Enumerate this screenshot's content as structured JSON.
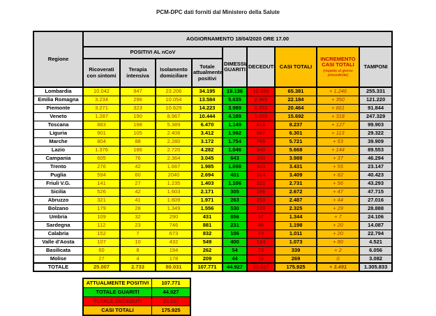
{
  "page_title": "PCM-DPC dati forniti dal Ministero della Salute",
  "colors": {
    "yellow": "#FFFF00",
    "green": "#00DD00",
    "red": "#FF0000",
    "orange": "#FFC000",
    "header_grey": "#D9D9D9",
    "deceduti_text": "#7C1000",
    "positivi_text": "#A33A00",
    "increment_header_text": "#C00000"
  },
  "table": {
    "header": {
      "update": "AGGIORNAMENTO 18/04/2020 ORE 17.00",
      "region": "Regione",
      "positivi_group": "POSITIVI AL nCoV",
      "ricoverati": "Ricoverati con sintomi",
      "terapia": "Terapia intensiva",
      "isolamento": "Isolamento domiciliare",
      "totale_positivi": "Totale attualmente positivi",
      "dimessi": "DIMESSI/ GUARITI",
      "deceduti": "DECEDUTI",
      "casi_totali": "CASI TOTALI",
      "incremento": "INCREMENTO CASI TOTALI",
      "incremento_note": "(rispetto al giorno precedente)",
      "tamponi": "TAMPONI"
    },
    "rows": [
      {
        "region": "Lombardia",
        "values": [
          "10.042",
          "947",
          "23.206",
          "34.195",
          "19.136",
          "12.050",
          "65.381",
          "+ 1.246",
          "255.331"
        ]
      },
      {
        "region": "Emilia Romagna",
        "values": [
          "3.234",
          "296",
          "10.054",
          "13.584",
          "5.635",
          "2.965",
          "22.184",
          "+ 350",
          "121.220"
        ]
      },
      {
        "region": "Piemonte",
        "values": [
          "3.271",
          "323",
          "10.629",
          "14.223",
          "3.989",
          "2.252",
          "20.464",
          "+ 661",
          "91.844"
        ]
      },
      {
        "region": "Veneto",
        "values": [
          "1.287",
          "190",
          "8.967",
          "10.444",
          "4.189",
          "1.059",
          "15.692",
          "+ 318",
          "247.329"
        ]
      },
      {
        "region": "Toscana",
        "values": [
          "883",
          "198",
          "5.389",
          "6.470",
          "1.149",
          "618",
          "8.237",
          "+ 127",
          "99.903"
        ]
      },
      {
        "region": "Liguria",
        "values": [
          "901",
          "105",
          "2.406",
          "3.412",
          "1.992",
          "897",
          "6.301",
          "+ 113",
          "29.322"
        ]
      },
      {
        "region": "Marche",
        "values": [
          "804",
          "88",
          "2.280",
          "3.172",
          "1.754",
          "795",
          "5.721",
          "+ 53",
          "39.909"
        ]
      },
      {
        "region": "Lazio",
        "values": [
          "1.376",
          "186",
          "2.720",
          "4.282",
          "1.046",
          "340",
          "5.668",
          "+ 144",
          "89.553"
        ]
      },
      {
        "region": "Campania",
        "values": [
          "605",
          "76",
          "2.364",
          "3.045",
          "643",
          "300",
          "3.988",
          "+ 37",
          "46.294"
        ]
      },
      {
        "region": "Trento",
        "values": [
          "276",
          "42",
          "1.667",
          "1.985",
          "1.098",
          "348",
          "3.431",
          "+ 55",
          "23.147"
        ]
      },
      {
        "region": "Puglia",
        "values": [
          "594",
          "60",
          "2040",
          "2.694",
          "401",
          "314",
          "3.409",
          "+ 82",
          "40.423"
        ]
      },
      {
        "region": "Friuli V.G.",
        "values": [
          "141",
          "27",
          "1.235",
          "1.403",
          "1.106",
          "222",
          "2.731",
          "+ 56",
          "43.293"
        ]
      },
      {
        "region": "Sicilia",
        "values": [
          "526",
          "42",
          "1.603",
          "2.171",
          "305",
          "196",
          "2.672",
          "+ 47",
          "47.715"
        ]
      },
      {
        "region": "Abruzzo",
        "values": [
          "321",
          "41",
          "1.609",
          "1.971",
          "263",
          "253",
          "2.487",
          "+ 44",
          "27.016"
        ]
      },
      {
        "region": "Bolzano",
        "values": [
          "179",
          "28",
          "1.349",
          "1.556",
          "530",
          "239",
          "2.325",
          "+ 29",
          "28.888"
        ]
      },
      {
        "region": "Umbria",
        "values": [
          "109",
          "32",
          "290",
          "431",
          "856",
          "57",
          "1.344",
          "+ 7",
          "24.106"
        ]
      },
      {
        "region": "Sardegna",
        "values": [
          "112",
          "23",
          "746",
          "881",
          "231",
          "86",
          "1.198",
          "+ 20",
          "14.087"
        ]
      },
      {
        "region": "Calabria",
        "values": [
          "152",
          "7",
          "673",
          "832",
          "106",
          "73",
          "1.011",
          "+ 20",
          "22.794"
        ]
      },
      {
        "region": "Valle d'Aosta",
        "values": [
          "107",
          "10",
          "432",
          "549",
          "400",
          "124",
          "1.073",
          "+ 80",
          "4.521"
        ]
      },
      {
        "region": "Basilicata",
        "values": [
          "60",
          "8",
          "194",
          "262",
          "54",
          "23",
          "339",
          "+ 2",
          "6.056"
        ]
      },
      {
        "region": "Molise",
        "values": [
          "27",
          "4",
          "178",
          "209",
          "44",
          "16",
          "269",
          "0",
          "3.082"
        ]
      },
      {
        "region": "TOTALE",
        "is_total": true,
        "values": [
          "25.007",
          "2.733",
          "80.031",
          "107.771",
          "44.927",
          "23.227",
          "175.925",
          "+ 3.491",
          "1.305.833"
        ]
      }
    ]
  },
  "legend": {
    "rows": [
      {
        "label": "ATTUALMENTE POSITIVI",
        "value": "107.771",
        "color": "yellow"
      },
      {
        "label": "TOTALE GUARITI",
        "value": "44.927",
        "color": "green"
      },
      {
        "label": "TOTALE DECEDUTI",
        "value": "23.227",
        "color": "red"
      },
      {
        "label": "CASI TOTALI",
        "value": "175.925",
        "color": "orange"
      }
    ]
  }
}
